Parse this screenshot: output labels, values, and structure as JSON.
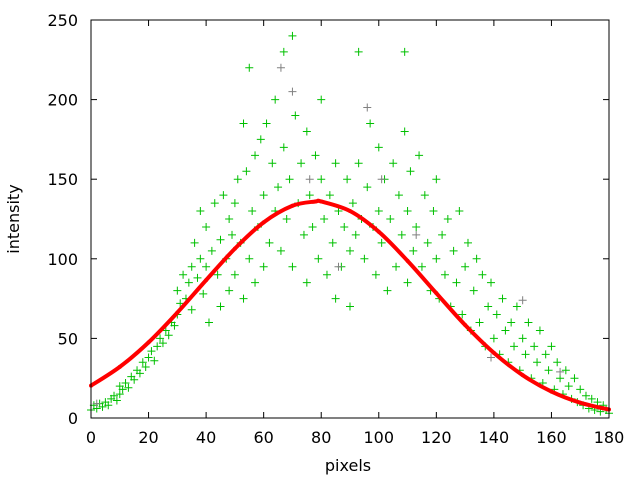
{
  "chart_data": {
    "type": "scatter",
    "xlabel": "pixels",
    "ylabel": "intensity",
    "xlim": [
      0,
      180
    ],
    "ylim": [
      0,
      250
    ],
    "xticks": [
      0,
      20,
      40,
      60,
      80,
      100,
      120,
      140,
      160,
      180
    ],
    "yticks": [
      0,
      50,
      100,
      150,
      200,
      250
    ],
    "grid": false,
    "legend": "none",
    "colors": {
      "points": "#00c000",
      "points_secondary": "#808080",
      "fit": "#ff0000"
    },
    "series": [
      {
        "style": "points",
        "color": "#00c000",
        "points": [
          [
            0,
            5
          ],
          [
            1,
            8
          ],
          [
            2,
            6
          ],
          [
            3,
            9
          ],
          [
            4,
            7
          ],
          [
            5,
            10
          ],
          [
            6,
            8
          ],
          [
            7,
            12
          ],
          [
            8,
            14
          ],
          [
            9,
            11
          ],
          [
            10,
            15
          ],
          [
            10,
            20
          ],
          [
            11,
            18
          ],
          [
            12,
            22
          ],
          [
            13,
            19
          ],
          [
            14,
            26
          ],
          [
            15,
            24
          ],
          [
            16,
            30
          ],
          [
            17,
            28
          ],
          [
            18,
            35
          ],
          [
            19,
            32
          ],
          [
            20,
            38
          ],
          [
            21,
            42
          ],
          [
            22,
            36
          ],
          [
            23,
            45
          ],
          [
            24,
            50
          ],
          [
            25,
            47
          ],
          [
            26,
            55
          ],
          [
            27,
            52
          ],
          [
            28,
            60
          ],
          [
            29,
            58
          ],
          [
            30,
            65
          ],
          [
            30,
            80
          ],
          [
            31,
            72
          ],
          [
            32,
            90
          ],
          [
            33,
            75
          ],
          [
            34,
            85
          ],
          [
            35,
            95
          ],
          [
            35,
            68
          ],
          [
            36,
            110
          ],
          [
            37,
            88
          ],
          [
            38,
            100
          ],
          [
            38,
            130
          ],
          [
            39,
            78
          ],
          [
            40,
            95
          ],
          [
            40,
            120
          ],
          [
            41,
            60
          ],
          [
            42,
            105
          ],
          [
            43,
            135
          ],
          [
            44,
            90
          ],
          [
            45,
            112
          ],
          [
            45,
            70
          ],
          [
            46,
            140
          ],
          [
            47,
            100
          ],
          [
            48,
            125
          ],
          [
            48,
            80
          ],
          [
            49,
            115
          ],
          [
            50,
            135
          ],
          [
            50,
            90
          ],
          [
            51,
            150
          ],
          [
            52,
            110
          ],
          [
            53,
            185
          ],
          [
            53,
            75
          ],
          [
            54,
            155
          ],
          [
            55,
            220
          ],
          [
            55,
            100
          ],
          [
            56,
            130
          ],
          [
            57,
            165
          ],
          [
            57,
            85
          ],
          [
            58,
            120
          ],
          [
            59,
            175
          ],
          [
            60,
            140
          ],
          [
            60,
            95
          ],
          [
            61,
            185
          ],
          [
            62,
            110
          ],
          [
            63,
            160
          ],
          [
            64,
            130
          ],
          [
            64,
            200
          ],
          [
            65,
            145
          ],
          [
            66,
            105
          ],
          [
            67,
            230
          ],
          [
            67,
            170
          ],
          [
            68,
            125
          ],
          [
            69,
            150
          ],
          [
            70,
            240
          ],
          [
            70,
            95
          ],
          [
            71,
            190
          ],
          [
            72,
            135
          ],
          [
            73,
            160
          ],
          [
            74,
            115
          ],
          [
            75,
            180
          ],
          [
            75,
            85
          ],
          [
            76,
            140
          ],
          [
            77,
            120
          ],
          [
            78,
            165
          ],
          [
            79,
            100
          ],
          [
            80,
            150
          ],
          [
            80,
            200
          ],
          [
            81,
            125
          ],
          [
            82,
            90
          ],
          [
            83,
            140
          ],
          [
            84,
            110
          ],
          [
            85,
            160
          ],
          [
            85,
            75
          ],
          [
            86,
            130
          ],
          [
            87,
            95
          ],
          [
            88,
            120
          ],
          [
            89,
            150
          ],
          [
            90,
            105
          ],
          [
            90,
            70
          ],
          [
            91,
            135
          ],
          [
            92,
            115
          ],
          [
            93,
            160
          ],
          [
            93,
            230
          ],
          [
            94,
            125
          ],
          [
            95,
            100
          ],
          [
            96,
            145
          ],
          [
            97,
            185
          ],
          [
            98,
            120
          ],
          [
            99,
            90
          ],
          [
            100,
            170
          ],
          [
            100,
            130
          ],
          [
            101,
            110
          ],
          [
            102,
            150
          ],
          [
            103,
            80
          ],
          [
            104,
            125
          ],
          [
            105,
            160
          ],
          [
            106,
            95
          ],
          [
            107,
            140
          ],
          [
            108,
            115
          ],
          [
            109,
            230
          ],
          [
            109,
            180
          ],
          [
            110,
            130
          ],
          [
            110,
            85
          ],
          [
            111,
            155
          ],
          [
            112,
            105
          ],
          [
            113,
            120
          ],
          [
            114,
            165
          ],
          [
            115,
            95
          ],
          [
            116,
            140
          ],
          [
            117,
            110
          ],
          [
            118,
            80
          ],
          [
            119,
            130
          ],
          [
            120,
            100
          ],
          [
            120,
            150
          ],
          [
            121,
            75
          ],
          [
            122,
            115
          ],
          [
            123,
            90
          ],
          [
            124,
            125
          ],
          [
            125,
            70
          ],
          [
            126,
            105
          ],
          [
            127,
            85
          ],
          [
            128,
            130
          ],
          [
            129,
            65
          ],
          [
            130,
            95
          ],
          [
            131,
            110
          ],
          [
            132,
            55
          ],
          [
            133,
            80
          ],
          [
            134,
            100
          ],
          [
            135,
            60
          ],
          [
            136,
            90
          ],
          [
            137,
            45
          ],
          [
            138,
            70
          ],
          [
            139,
            85
          ],
          [
            140,
            50
          ],
          [
            141,
            65
          ],
          [
            142,
            40
          ],
          [
            143,
            75
          ],
          [
            144,
            55
          ],
          [
            145,
            35
          ],
          [
            146,
            60
          ],
          [
            147,
            45
          ],
          [
            148,
            70
          ],
          [
            149,
            30
          ],
          [
            150,
            50
          ],
          [
            151,
            40
          ],
          [
            152,
            60
          ],
          [
            153,
            25
          ],
          [
            154,
            45
          ],
          [
            155,
            35
          ],
          [
            156,
            55
          ],
          [
            157,
            22
          ],
          [
            158,
            40
          ],
          [
            159,
            30
          ],
          [
            160,
            45
          ],
          [
            161,
            18
          ],
          [
            162,
            35
          ],
          [
            163,
            25
          ],
          [
            164,
            15
          ],
          [
            165,
            30
          ],
          [
            166,
            20
          ],
          [
            167,
            12
          ],
          [
            168,
            25
          ],
          [
            169,
            10
          ],
          [
            170,
            18
          ],
          [
            171,
            8
          ],
          [
            172,
            14
          ],
          [
            173,
            6
          ],
          [
            174,
            12
          ],
          [
            175,
            5
          ],
          [
            176,
            10
          ],
          [
            177,
            4
          ],
          [
            178,
            8
          ],
          [
            179,
            5
          ],
          [
            180,
            3
          ]
        ]
      },
      {
        "style": "points",
        "color": "#808080",
        "points": [
          [
            2,
            9
          ],
          [
            66,
            220
          ],
          [
            70,
            205
          ],
          [
            76,
            150
          ],
          [
            86,
            95
          ],
          [
            96,
            195
          ],
          [
            101,
            150
          ],
          [
            113,
            115
          ],
          [
            139,
            38
          ],
          [
            150,
            74
          ],
          [
            163,
            29
          ]
        ]
      },
      {
        "style": "fit-curve",
        "color": "#ff0000",
        "points": [
          [
            0,
            20.3
          ],
          [
            10,
            32.1
          ],
          [
            20,
            47.5
          ],
          [
            30,
            66.2
          ],
          [
            40,
            86.6
          ],
          [
            50,
            106.4
          ],
          [
            60,
            122.9
          ],
          [
            70,
            133.3
          ],
          [
            78,
            136
          ],
          [
            80,
            136
          ],
          [
            90,
            130
          ],
          [
            100,
            117
          ],
          [
            110,
            98.7
          ],
          [
            120,
            78.4
          ],
          [
            130,
            58.4
          ],
          [
            140,
            40.9
          ],
          [
            150,
            26.9
          ],
          [
            160,
            16.6
          ],
          [
            170,
            9.6
          ],
          [
            180,
            5.3
          ]
        ]
      }
    ]
  }
}
